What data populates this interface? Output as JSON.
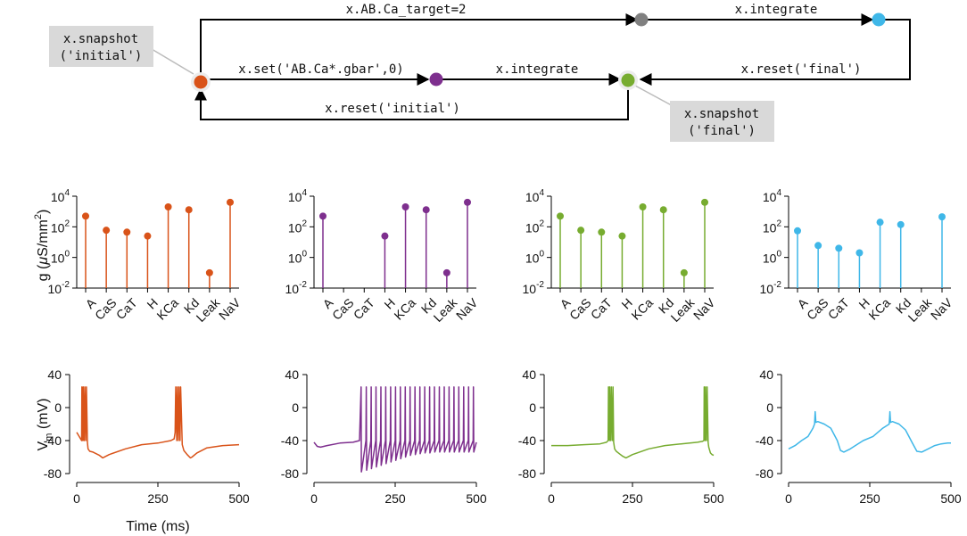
{
  "diagram": {
    "edges": {
      "top": "x.AB.Ca_target=2",
      "top_right": "x.integrate",
      "set": "x.set('AB.Ca*.gbar',0)",
      "integrate": "x.integrate",
      "reset_final": "x.reset('final')",
      "reset_initial": "x.reset('initial')"
    },
    "callouts": {
      "initial_line1": "x.snapshot",
      "initial_line2": "('initial')",
      "final_line1": "x.snapshot",
      "final_line2": "('final')"
    },
    "node_colors": {
      "orange": "#D95319",
      "purple": "#7E2F8E",
      "green": "#77AC30",
      "gray": "#808080",
      "blue": "#3FB7E8"
    }
  },
  "chart_data": [
    {
      "type": "stem",
      "panel": "conductances-orange",
      "color": "#D95319",
      "ylabel": "g (μS/mm²)",
      "yscale": "log",
      "ylim": [
        0.01,
        10000
      ],
      "yticks": [
        {
          "base": "10",
          "exp": "-2"
        },
        {
          "base": "10",
          "exp": "0"
        },
        {
          "base": "10",
          "exp": "2"
        },
        {
          "base": "10",
          "exp": "4"
        }
      ],
      "categories": [
        "A",
        "CaS",
        "CaT",
        "H",
        "KCa",
        "Kd",
        "Leak",
        "NaV"
      ],
      "values": [
        500,
        60,
        45,
        25,
        2000,
        1300,
        0.1,
        4000
      ]
    },
    {
      "type": "stem",
      "panel": "conductances-purple",
      "color": "#7E2F8E",
      "ylabel": "",
      "yscale": "log",
      "ylim": [
        0.01,
        10000
      ],
      "yticks": [
        {
          "base": "10",
          "exp": "-2"
        },
        {
          "base": "10",
          "exp": "0"
        },
        {
          "base": "10",
          "exp": "2"
        },
        {
          "base": "10",
          "exp": "4"
        }
      ],
      "categories": [
        "A",
        "CaS",
        "CaT",
        "H",
        "KCa",
        "Kd",
        "Leak",
        "NaV"
      ],
      "values": [
        500,
        null,
        null,
        25,
        2000,
        1300,
        0.1,
        4000
      ]
    },
    {
      "type": "stem",
      "panel": "conductances-green",
      "color": "#77AC30",
      "ylabel": "",
      "yscale": "log",
      "ylim": [
        0.01,
        10000
      ],
      "yticks": [
        {
          "base": "10",
          "exp": "-2"
        },
        {
          "base": "10",
          "exp": "0"
        },
        {
          "base": "10",
          "exp": "2"
        },
        {
          "base": "10",
          "exp": "4"
        }
      ],
      "categories": [
        "A",
        "CaS",
        "CaT",
        "H",
        "KCa",
        "Kd",
        "Leak",
        "NaV"
      ],
      "values": [
        500,
        60,
        45,
        25,
        2000,
        1300,
        0.1,
        4000
      ]
    },
    {
      "type": "stem",
      "panel": "conductances-blue",
      "color": "#3FB7E8",
      "ylabel": "",
      "yscale": "log",
      "ylim": [
        0.01,
        10000
      ],
      "yticks": [
        {
          "base": "10",
          "exp": "-2"
        },
        {
          "base": "10",
          "exp": "0"
        },
        {
          "base": "10",
          "exp": "2"
        },
        {
          "base": "10",
          "exp": "4"
        }
      ],
      "categories": [
        "A",
        "CaS",
        "CaT",
        "H",
        "KCa",
        "Kd",
        "Leak",
        "NaV"
      ],
      "values": [
        55,
        6,
        4,
        2,
        200,
        140,
        null,
        450
      ]
    },
    {
      "type": "line",
      "panel": "voltage-orange",
      "color": "#D95319",
      "xlabel": "Time (ms)",
      "ylabel": "V_m (mV)",
      "xlim": [
        0,
        500
      ],
      "ylim": [
        -80,
        40
      ],
      "xticks": [
        0,
        250,
        500
      ],
      "yticks": [
        -80,
        -40,
        0,
        40
      ],
      "x": [
        0,
        15,
        16,
        19,
        20,
        23,
        25,
        28,
        30,
        33,
        35,
        40,
        50,
        70,
        80,
        100,
        150,
        200,
        250,
        290,
        300,
        303,
        305,
        308,
        310,
        313,
        315,
        318,
        320,
        325,
        330,
        340,
        350,
        355,
        370,
        400,
        450,
        500
      ],
      "y": [
        -30,
        -40,
        25,
        -40,
        25,
        -40,
        25,
        -40,
        25,
        -42,
        -50,
        -53,
        -54,
        -58,
        -61,
        -57,
        -50,
        -45,
        -43,
        -40,
        -38,
        -30,
        25,
        -40,
        25,
        -40,
        25,
        -40,
        25,
        -45,
        -52,
        -57,
        -61,
        -60,
        -55,
        -49,
        -46,
        -45
      ]
    },
    {
      "type": "line",
      "panel": "voltage-purple",
      "color": "#7E2F8E",
      "xlabel": "",
      "ylabel": "",
      "xlim": [
        0,
        500
      ],
      "ylim": [
        -80,
        40
      ],
      "xticks": [
        0,
        250,
        500
      ],
      "yticks": [
        -80,
        -40,
        0,
        40
      ],
      "x": [
        0,
        10,
        20,
        40,
        80,
        120,
        140,
        145,
        146,
        147,
        160,
        161,
        162,
        175,
        176,
        177,
        190,
        191,
        192,
        205,
        206,
        207,
        220,
        221,
        222,
        235,
        236,
        237,
        250,
        251,
        252,
        265,
        266,
        267,
        280,
        281,
        282,
        295,
        296,
        297,
        310,
        311,
        312,
        325,
        326,
        327,
        340,
        341,
        342,
        355,
        356,
        357,
        370,
        371,
        372,
        385,
        386,
        387,
        400,
        401,
        402,
        415,
        416,
        417,
        430,
        431,
        432,
        445,
        446,
        447,
        460,
        461,
        462,
        475,
        476,
        477,
        490,
        491,
        492,
        500
      ],
      "y": [
        -42,
        -47,
        -48,
        -46,
        -43,
        -42,
        -40,
        25,
        -78,
        -76,
        -40,
        25,
        -76,
        -40,
        25,
        -74,
        -40,
        25,
        -72,
        -40,
        25,
        -70,
        -40,
        25,
        -68,
        -40,
        25,
        -66,
        -40,
        25,
        -64,
        -40,
        25,
        -62,
        -40,
        25,
        -60,
        -40,
        25,
        -58,
        -40,
        25,
        -57,
        -40,
        25,
        -56,
        -40,
        25,
        -55,
        -40,
        25,
        -55,
        -40,
        25,
        -54,
        -40,
        25,
        -54,
        -40,
        25,
        -54,
        -40,
        25,
        -54,
        -40,
        25,
        -54,
        -40,
        25,
        -54,
        -40,
        25,
        -54,
        -40,
        25,
        -54,
        -40,
        25,
        -54,
        -42
      ]
    },
    {
      "type": "line",
      "panel": "voltage-green",
      "color": "#77AC30",
      "xlabel": "",
      "ylabel": "",
      "xlim": [
        0,
        500
      ],
      "ylim": [
        -80,
        40
      ],
      "xticks": [
        0,
        250,
        500
      ],
      "yticks": [
        -80,
        -40,
        0,
        40
      ],
      "x": [
        0,
        50,
        100,
        150,
        170,
        175,
        176,
        179,
        180,
        183,
        185,
        188,
        190,
        192,
        195,
        200,
        210,
        220,
        230,
        250,
        300,
        350,
        400,
        450,
        465,
        470,
        471,
        474,
        475,
        478,
        480,
        483,
        485,
        488,
        490,
        495,
        500
      ],
      "y": [
        -46,
        -46,
        -45,
        -44,
        -42,
        -40,
        25,
        -40,
        25,
        -40,
        25,
        -40,
        25,
        -42,
        -50,
        -53,
        -56,
        -59,
        -61,
        -57,
        -50,
        -46,
        -44,
        -42,
        -41,
        -40,
        25,
        -40,
        25,
        -40,
        25,
        -42,
        -48,
        -52,
        -55,
        -57,
        -58
      ]
    },
    {
      "type": "line",
      "panel": "voltage-blue",
      "color": "#3FB7E8",
      "xlabel": "",
      "ylabel": "",
      "xlim": [
        0,
        500
      ],
      "ylim": [
        -80,
        40
      ],
      "xticks": [
        0,
        250,
        500
      ],
      "yticks": [
        -80,
        -40,
        0,
        40
      ],
      "x": [
        0,
        20,
        40,
        60,
        75,
        80,
        82,
        84,
        90,
        110,
        130,
        150,
        160,
        170,
        190,
        210,
        230,
        260,
        290,
        310,
        312,
        314,
        320,
        340,
        360,
        380,
        395,
        410,
        430,
        450,
        470,
        490,
        500
      ],
      "y": [
        -50,
        -46,
        -40,
        -35,
        -25,
        -20,
        -5,
        -18,
        -17,
        -20,
        -25,
        -40,
        -52,
        -54,
        -50,
        -45,
        -40,
        -35,
        -25,
        -20,
        -5,
        -18,
        -17,
        -20,
        -27,
        -42,
        -53,
        -54,
        -50,
        -46,
        -44,
        -43,
        -43
      ]
    }
  ]
}
